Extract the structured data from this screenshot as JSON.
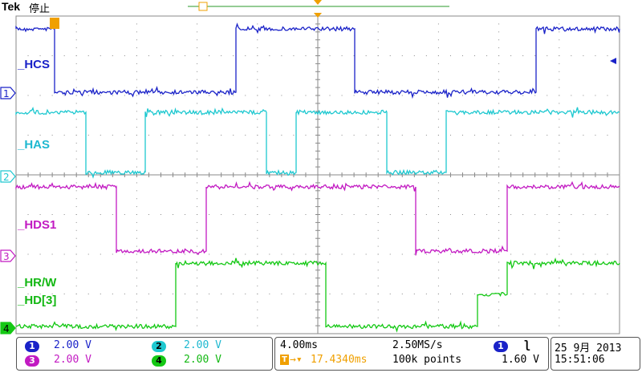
{
  "header": {
    "brand": "Tek",
    "state": "停止"
  },
  "colors": {
    "ch1": "#1a22c8",
    "ch2": "#1ec8d0",
    "ch3": "#c21ac2",
    "ch4": "#14c814",
    "trigger": "#f0a000",
    "grid": "#8a8a8a"
  },
  "channels": [
    {
      "number": "1",
      "label": "_HCS",
      "scale": "2.00 V"
    },
    {
      "number": "2",
      "label": "_HAS",
      "scale": "2.00 V"
    },
    {
      "number": "3",
      "label": "_HDS1",
      "scale": "2.00 V"
    },
    {
      "number": "4",
      "label": "_HR/W",
      "label2": "_HD[3]",
      "scale": "2.00 V"
    }
  ],
  "timebase": {
    "scale": "4.00ms",
    "sample_rate": "2.50MS/s",
    "trigger_pos": "17.4340ms",
    "record": "100k points"
  },
  "trigger": {
    "source": "1",
    "slope_icon": "falling-edge-icon",
    "level": "1.60 V"
  },
  "datetime": {
    "date": "25 9月  2013",
    "time": "15:51:06"
  }
}
